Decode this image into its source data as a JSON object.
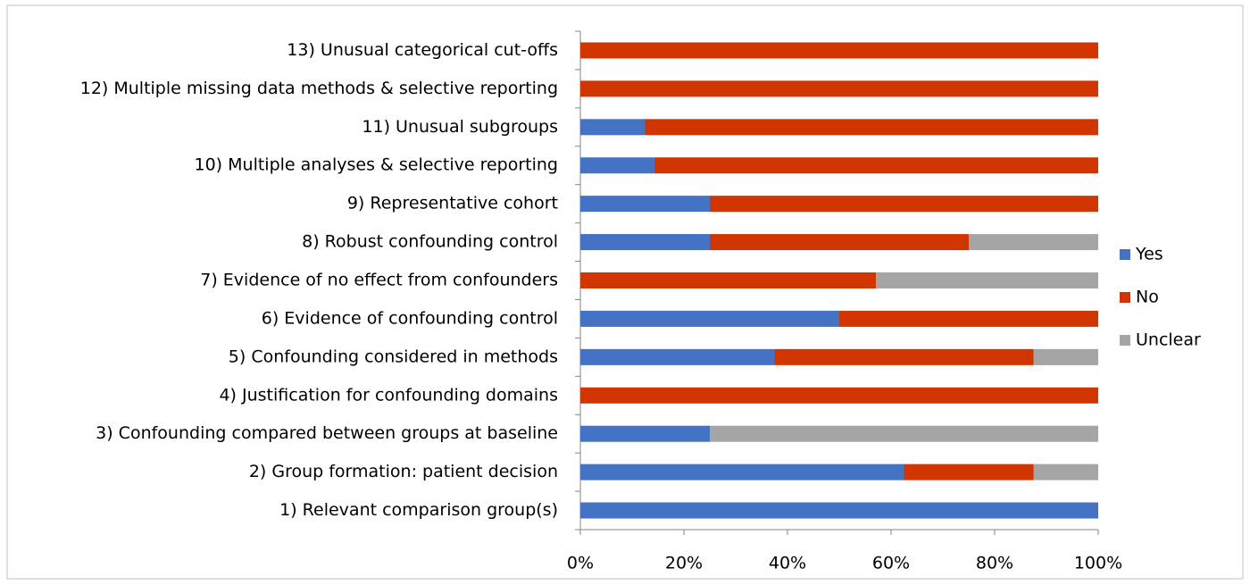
{
  "chart_data": {
    "type": "stacked_bar_horizontal",
    "categories": [
      "1) Relevant comparison group(s)",
      "2) Group formation: patient decision",
      "3) Confounding compared between groups at baseline",
      "4) Justification for confounding domains",
      "5) Confounding considered in methods",
      "6) Evidence of confounding control",
      "7) Evidence of no effect from confounders",
      "8) Robust confounding control",
      "9) Representative cohort",
      "10) Multiple analyses & selective reporting",
      "11) Unusual subgroups",
      "12) Multiple missing data methods & selective reporting",
      "13) Unusual categorical cut-offs"
    ],
    "series": [
      {
        "name": "Yes",
        "color": "#4472c4",
        "values": [
          100,
          62.5,
          25,
          0,
          37.5,
          50,
          0,
          25,
          25,
          14.3,
          12.5,
          0,
          0
        ]
      },
      {
        "name": "No",
        "color": "#d13500",
        "values": [
          0,
          25,
          0,
          100,
          50,
          50,
          57.1,
          50,
          75,
          85.7,
          87.5,
          100,
          100
        ]
      },
      {
        "name": "Unclear",
        "color": "#a5a5a5",
        "values": [
          0,
          12.5,
          75,
          0,
          12.5,
          0,
          42.9,
          25,
          0,
          0,
          0,
          0,
          0
        ]
      }
    ],
    "xlim": [
      0,
      100
    ],
    "xticks": [
      {
        "value": 0,
        "label": "0%"
      },
      {
        "value": 20,
        "label": "20%"
      },
      {
        "value": 40,
        "label": "40%"
      },
      {
        "value": 60,
        "label": "60%"
      },
      {
        "value": 80,
        "label": "80%"
      },
      {
        "value": 100,
        "label": "100%"
      }
    ],
    "legend": "right"
  }
}
